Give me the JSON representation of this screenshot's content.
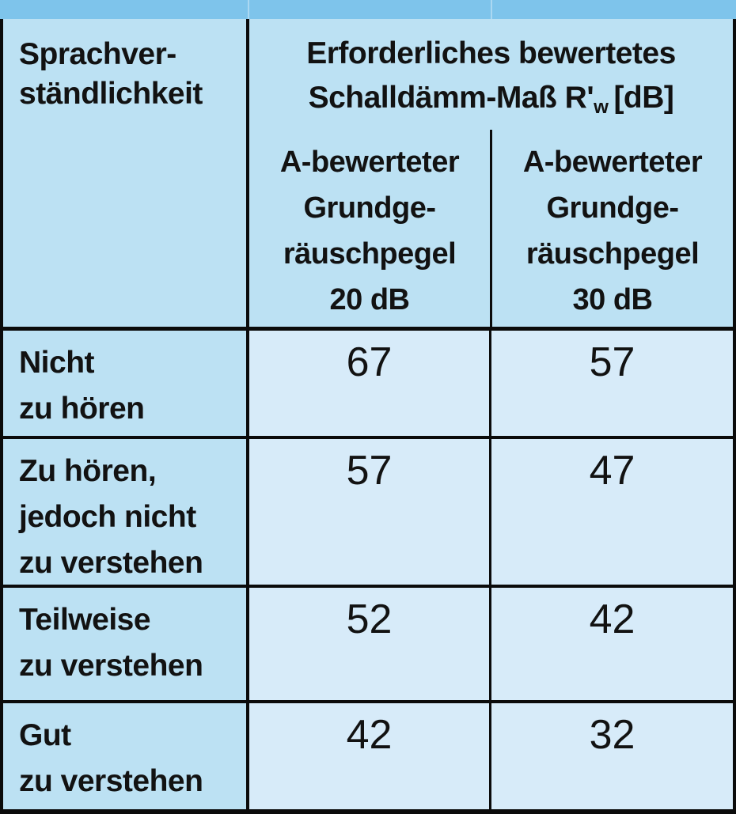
{
  "table": {
    "col1_header_lines": [
      "Sprachver-",
      "ständlichkeit"
    ],
    "span_header": {
      "line1": "Erforderliches bewertetes",
      "line2_prefix": "Schalldämm-Maß R'",
      "line2_sub": "w",
      "line2_suffix": "[dB]"
    },
    "subheaders": [
      {
        "lines": [
          "A-bewerteter",
          "Grundge-",
          "räuschpegel",
          "20 dB"
        ]
      },
      {
        "lines": [
          "A-bewerteter",
          "Grundge-",
          "räuschpegel",
          "30 dB"
        ]
      }
    ],
    "rows": [
      {
        "label_lines": [
          "Nicht",
          "zu hören"
        ],
        "values": [
          "67",
          "57"
        ]
      },
      {
        "label_lines": [
          "Zu hören,",
          "jedoch nicht",
          "zu verstehen"
        ],
        "values": [
          "57",
          "47"
        ]
      },
      {
        "label_lines": [
          "Teilweise",
          "zu verstehen"
        ],
        "values": [
          "52",
          "42"
        ]
      },
      {
        "label_lines": [
          "Gut",
          "zu verstehen"
        ],
        "values": [
          "42",
          "32"
        ]
      }
    ]
  },
  "colors": {
    "top_band": "#7ec4eb",
    "header_and_label_bg": "#bce1f3",
    "value_cell_bg": "#d7ebf9",
    "border": "#0b0b0b",
    "text": "#121212"
  }
}
